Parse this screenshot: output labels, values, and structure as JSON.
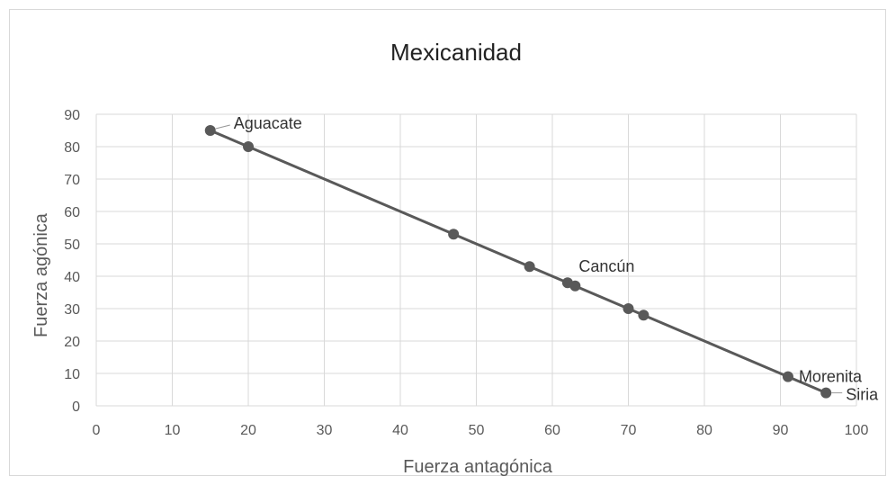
{
  "chart_data": {
    "type": "scatter",
    "title": "Mexicanidad",
    "xlabel": "Fuerza antagónica",
    "ylabel": "Fuerza agónica",
    "xlim": [
      0,
      100
    ],
    "ylim": [
      0,
      90
    ],
    "xticks": [
      "0",
      "10",
      "20",
      "30",
      "40",
      "50",
      "60",
      "70",
      "80",
      "90",
      "100"
    ],
    "yticks": [
      "0",
      "10",
      "20",
      "30",
      "40",
      "50",
      "60",
      "70",
      "80",
      "90"
    ],
    "grid": true,
    "trendline": true,
    "colors": {
      "marker": "#595959",
      "line": "#595959",
      "grid": "#d9d9d9"
    },
    "points": [
      {
        "x": 15,
        "y": 85,
        "label": "Aguacate"
      },
      {
        "x": 20,
        "y": 80,
        "label": ""
      },
      {
        "x": 47,
        "y": 53,
        "label": ""
      },
      {
        "x": 57,
        "y": 43,
        "label": ""
      },
      {
        "x": 62,
        "y": 38,
        "label": ""
      },
      {
        "x": 63,
        "y": 37,
        "label": "Cancún"
      },
      {
        "x": 70,
        "y": 30,
        "label": ""
      },
      {
        "x": 72,
        "y": 28,
        "label": ""
      },
      {
        "x": 91,
        "y": 9,
        "label": "Morenita"
      },
      {
        "x": 96,
        "y": 4,
        "label": "Siria"
      }
    ]
  }
}
